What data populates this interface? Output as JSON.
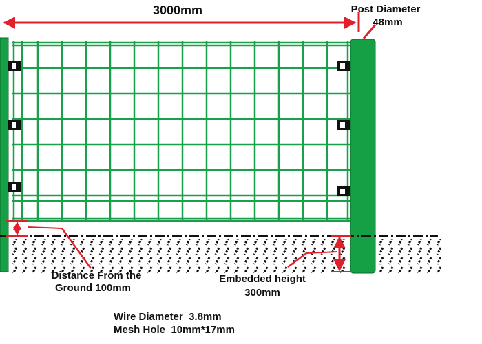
{
  "dimensions": {
    "panel_width": "3000mm",
    "post_diameter": {
      "label": "Post Diameter",
      "value": "48mm"
    }
  },
  "ground_distance": {
    "line1": "Distance From the",
    "line2": "Ground 100mm"
  },
  "embedded_height": {
    "line1": "Embedded height",
    "line2": "300mm"
  },
  "specs": {
    "wire_diameter": "Wire Diameter  3.8mm",
    "mesh_hole": "Mesh Hole  10mm*17mm"
  }
}
